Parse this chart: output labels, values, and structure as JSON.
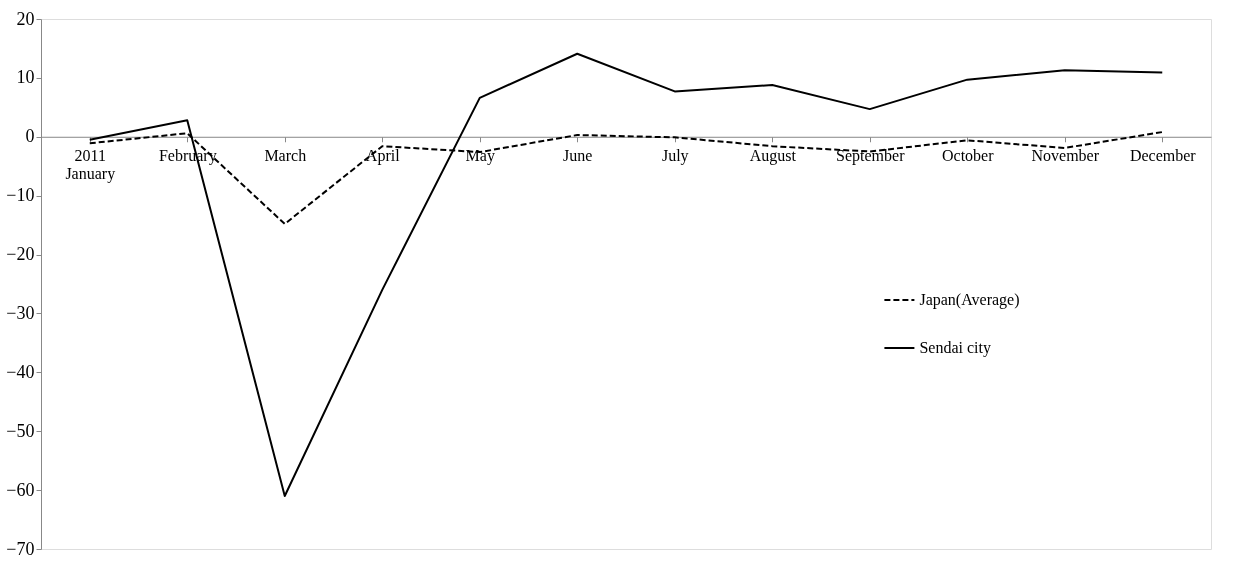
{
  "chart_data": {
    "type": "line",
    "categories": [
      "2011 January",
      "February",
      "March",
      "April",
      "May",
      "June",
      "July",
      "August",
      "September",
      "October",
      "November",
      "December"
    ],
    "series": [
      {
        "name": "Japan(Average)",
        "color": "#000000",
        "line_style": "dashed",
        "values": [
          -1.1,
          0.6,
          -14.8,
          -1.6,
          -2.6,
          0.3,
          -0.1,
          -1.6,
          -2.5,
          -0.6,
          -1.9,
          0.8
        ]
      },
      {
        "name": "Sendai city",
        "color": "#000000",
        "line_style": "solid",
        "values": [
          -0.5,
          2.8,
          -61,
          -26,
          6.6,
          14.1,
          7.7,
          8.8,
          4.7,
          9.7,
          11.3,
          10.9
        ]
      }
    ],
    "ylim": [
      -70,
      20
    ],
    "yticks": [
      -70,
      -60,
      -50,
      -40,
      -30,
      -20,
      -10,
      0,
      10,
      20
    ],
    "grid": false,
    "legend": "right",
    "marker": "none"
  }
}
